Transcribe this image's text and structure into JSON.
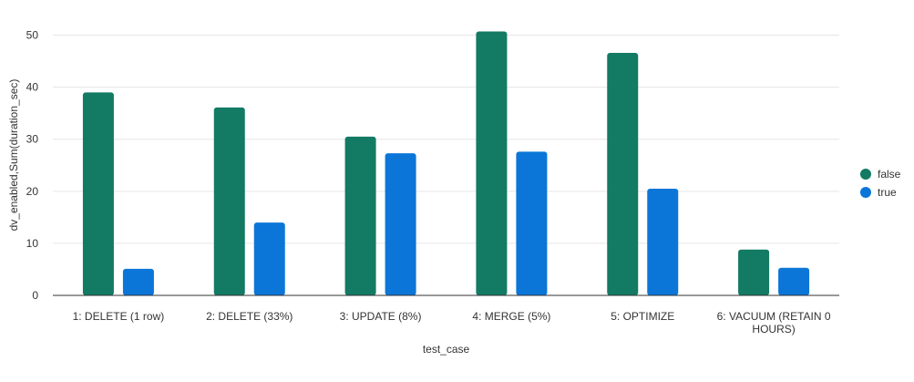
{
  "chart_data": {
    "type": "bar",
    "xlabel": "test_case",
    "ylabel": "dv_enabled,Sum(duration_sec)",
    "ylim": [
      0,
      55
    ],
    "yticks": [
      0,
      10,
      20,
      30,
      40,
      50
    ],
    "grid": true,
    "legend_position": "right",
    "categories": [
      "1: DELETE (1 row)",
      "2: DELETE (33%)",
      "3: UPDATE (8%)",
      "4: MERGE (5%)",
      "5: OPTIMIZE",
      "6: VACUUM (RETAIN 0 HOURS)"
    ],
    "series": [
      {
        "name": "false",
        "color": "#137a64",
        "values": [
          39,
          36.1,
          30.5,
          50.7,
          46.6,
          8.8
        ]
      },
      {
        "name": "true",
        "color": "#0b76d8",
        "values": [
          5.1,
          14,
          27.3,
          27.6,
          20.5,
          5.3
        ]
      }
    ]
  }
}
